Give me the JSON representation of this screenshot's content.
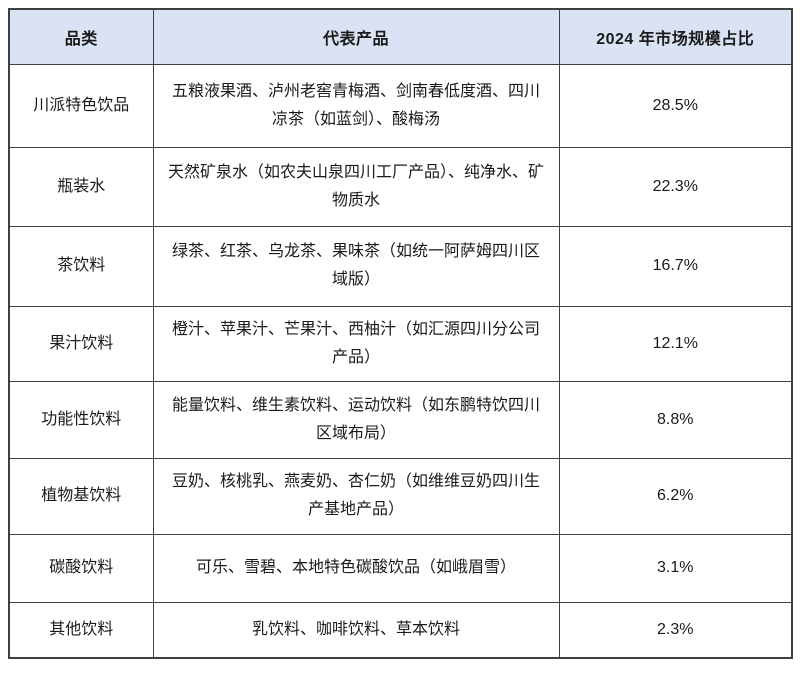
{
  "table": {
    "headers": {
      "category": "品类",
      "products": "代表产品",
      "share": "2024 年市场规模占比"
    },
    "rows": [
      {
        "category": "川派特色饮品",
        "products": "五粮液果酒、泸州老窖青梅酒、剑南春低度酒、四川凉茶（如蓝剑）、酸梅汤",
        "share": "28.5%"
      },
      {
        "category": "瓶装水",
        "products": "天然矿泉水（如农夫山泉四川工厂产品）、纯净水、矿物质水",
        "share": "22.3%"
      },
      {
        "category": "茶饮料",
        "products": "绿茶、红茶、乌龙茶、果味茶（如统一阿萨姆四川区域版）",
        "share": "16.7%"
      },
      {
        "category": "果汁饮料",
        "products": "橙汁、苹果汁、芒果汁、西柚汁（如汇源四川分公司产品）",
        "share": "12.1%"
      },
      {
        "category": "功能性饮料",
        "products": "能量饮料、维生素饮料、运动饮料（如东鹏特饮四川区域布局）",
        "share": "8.8%"
      },
      {
        "category": "植物基饮料",
        "products": "豆奶、核桃乳、燕麦奶、杏仁奶（如维维豆奶四川生产基地产品）",
        "share": "6.2%"
      },
      {
        "category": "碳酸饮料",
        "products": "可乐、雪碧、本地特色碳酸饮品（如峨眉雪）",
        "share": "3.1%"
      },
      {
        "category": "其他饮料",
        "products": "乳饮料、咖啡饮料、草本饮料",
        "share": "2.3%"
      }
    ],
    "colors": {
      "header_bg": "#dae3f3",
      "border": "#404040",
      "text": "#1a1a1a"
    }
  }
}
